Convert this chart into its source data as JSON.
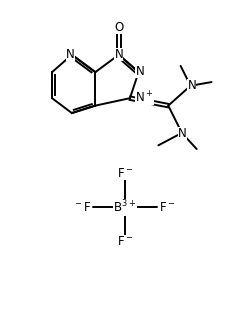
{
  "bg_color": "#ffffff",
  "line_color": "#000000",
  "line_width": 1.4,
  "figsize": [
    2.5,
    3.13
  ],
  "dpi": 100,
  "xlim": [
    0,
    10
  ],
  "ylim": [
    0,
    12.5
  ]
}
